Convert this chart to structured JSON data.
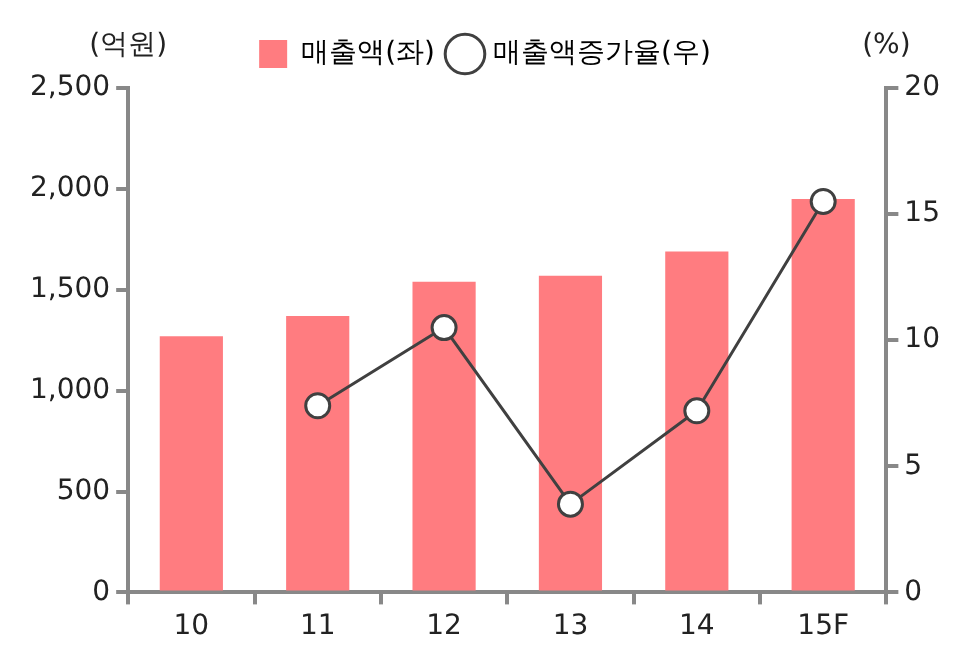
{
  "chart_data": {
    "type": "bar",
    "ylabel": "(억원)",
    "y2label": "(%)",
    "categories": [
      "10",
      "11",
      "12",
      "13",
      "14",
      "15F"
    ],
    "series": [
      {
        "name": "매출액(좌)",
        "color": "#ff7c80",
        "values": [
          1270,
          1370,
          1540,
          1570,
          1690,
          1950
        ]
      },
      {
        "name": "매출액증가율(우)",
        "type": "line",
        "axis": "y2",
        "color": "#404040",
        "marker": "circle",
        "values": [
          null,
          7.4,
          10.5,
          3.5,
          7.2,
          15.5
        ]
      }
    ],
    "ylim": [
      0,
      2500
    ],
    "yticks": [
      {
        "value": 0,
        "label": "0"
      },
      {
        "value": 500,
        "label": "500"
      },
      {
        "value": 1000,
        "label": "1,000"
      },
      {
        "value": 1500,
        "label": "1,500"
      },
      {
        "value": 2000,
        "label": "2,000"
      },
      {
        "value": 2500,
        "label": "2,500"
      }
    ],
    "y2lim": [
      0,
      20
    ],
    "y2ticks": [
      0,
      5,
      10,
      15,
      20
    ],
    "grid": false,
    "legend": "top"
  }
}
